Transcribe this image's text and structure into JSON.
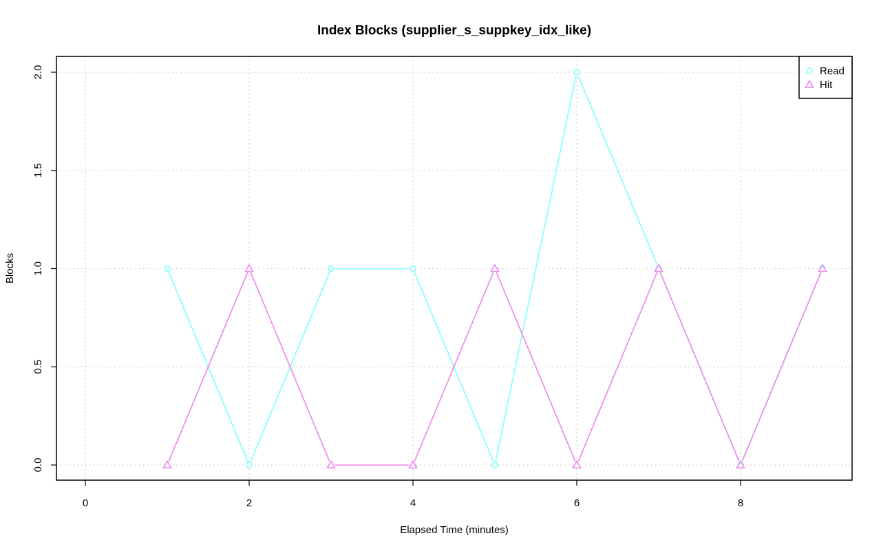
{
  "chart_data": {
    "type": "line",
    "title": "Index Blocks (supplier_s_suppkey_idx_like)",
    "xlabel": "Elapsed Time (minutes)",
    "ylabel": "Blocks",
    "xlim": [
      0,
      9
    ],
    "ylim": [
      0,
      2
    ],
    "x_ticks": [
      "0",
      "2",
      "4",
      "6",
      "8"
    ],
    "y_ticks": [
      "0.0",
      "0.5",
      "1.0",
      "1.5",
      "2.0"
    ],
    "grid": true,
    "legend_position": "top-right",
    "series": [
      {
        "name": "Read",
        "color": "#7ffefe",
        "marker": "circle",
        "x": [
          1,
          2,
          3,
          4,
          5,
          6,
          7,
          8,
          9
        ],
        "values": [
          1,
          0,
          1,
          1,
          0,
          2,
          1,
          0,
          1
        ]
      },
      {
        "name": "Hit",
        "color": "#ee82ee",
        "marker": "triangle",
        "x": [
          1,
          2,
          3,
          4,
          5,
          6,
          7,
          8,
          9
        ],
        "values": [
          0,
          1,
          0,
          0,
          1,
          0,
          1,
          0,
          1
        ]
      }
    ]
  }
}
